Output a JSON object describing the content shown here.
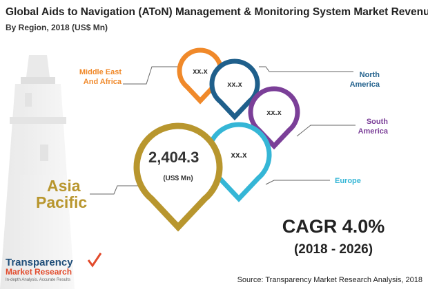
{
  "header": {
    "title": "Global Aids to Navigation (AToN) Management & Monitoring System Market Revenue",
    "subtitle": "By Region, 2018 (US$ Mn)"
  },
  "regions": [
    {
      "label": [
        "Middle East",
        "And Africa"
      ],
      "value": "xx.x"
    },
    {
      "label": [
        "North",
        "America"
      ],
      "value": "xx.x"
    },
    {
      "label": [
        "South",
        "America"
      ],
      "value": "xx.x"
    },
    {
      "label": [
        "Europe"
      ],
      "value": "xx.x"
    },
    {
      "label": [
        "Asia",
        "Pacific"
      ],
      "value": "2,404.3",
      "unit": "(US$ Mn)"
    }
  ],
  "cagr": {
    "title": "CAGR 4.0%",
    "period": "(2018 - 2026)"
  },
  "logo": {
    "line1": "Transparency",
    "line2": "Market Research",
    "tagline": "In-depth Analysis. Accurate Results"
  },
  "source": "Source: Transparency Market Research Analysis, 2018"
}
